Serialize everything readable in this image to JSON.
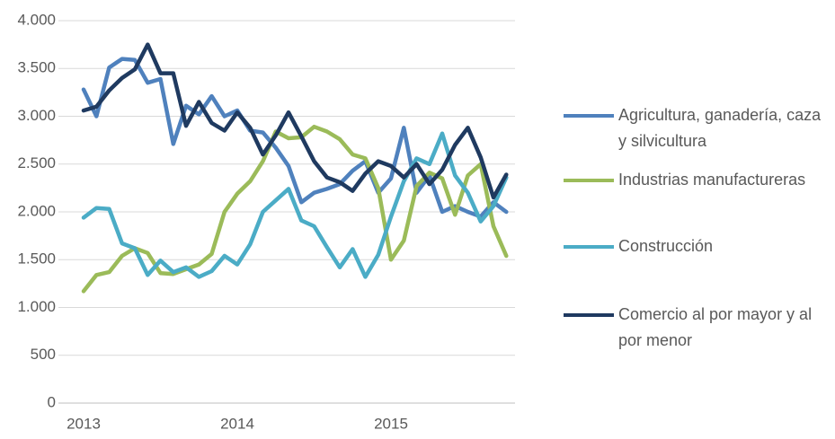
{
  "chart_data": {
    "type": "line",
    "categories": [
      "2013",
      null,
      null,
      null,
      null,
      null,
      null,
      null,
      null,
      null,
      null,
      null,
      "2014",
      null,
      null,
      null,
      null,
      null,
      null,
      null,
      null,
      null,
      null,
      null,
      "2015",
      null,
      null,
      null,
      null,
      null,
      null,
      null,
      null,
      null
    ],
    "series": [
      {
        "name": "Agricultura, ganadería, caza y silvicultura",
        "color": "#4f81bd",
        "values": [
          3280,
          3000,
          3510,
          3600,
          3590,
          3350,
          3390,
          2710,
          3110,
          3020,
          3210,
          3000,
          3060,
          2850,
          2830,
          2670,
          2480,
          2100,
          2200,
          2240,
          2290,
          2430,
          2530,
          2200,
          2350,
          2880,
          2200,
          2380,
          2000,
          2060,
          2000,
          1950,
          2100,
          2000
        ]
      },
      {
        "name": "Industrias manufactureras",
        "color": "#9bbb59",
        "values": [
          1170,
          1340,
          1370,
          1540,
          1620,
          1570,
          1360,
          1350,
          1400,
          1450,
          1560,
          2000,
          2190,
          2320,
          2530,
          2840,
          2770,
          2780,
          2890,
          2840,
          2760,
          2600,
          2560,
          2250,
          1500,
          1700,
          2270,
          2410,
          2350,
          1970,
          2380,
          2500,
          1850,
          1540
        ]
      },
      {
        "name": "Construcción",
        "color": "#4bacc6",
        "values": [
          1940,
          2040,
          2030,
          1670,
          1620,
          1340,
          1490,
          1370,
          1420,
          1320,
          1380,
          1540,
          1450,
          1660,
          2000,
          2120,
          2240,
          1910,
          1850,
          1630,
          1420,
          1610,
          1320,
          1550,
          1950,
          2320,
          2560,
          2500,
          2820,
          2380,
          2200,
          1900,
          2060,
          2360
        ]
      },
      {
        "name": "Comercio al por mayor y al por menor",
        "color": "#1f3a60",
        "values": [
          3060,
          3100,
          3270,
          3400,
          3490,
          3750,
          3450,
          3450,
          2900,
          3150,
          2930,
          2850,
          3040,
          2880,
          2600,
          2800,
          3040,
          2790,
          2530,
          2360,
          2310,
          2220,
          2400,
          2530,
          2480,
          2360,
          2500,
          2290,
          2440,
          2700,
          2880,
          2570,
          2150,
          2390
        ]
      }
    ],
    "ylim": [
      0,
      4000
    ],
    "yticks": [
      0,
      500,
      {
        "value": 1000,
        "label": "1.000"
      },
      {
        "value": 1500,
        "label": "1.500"
      },
      {
        "value": 2000,
        "label": "2.000"
      },
      {
        "value": 2500,
        "label": "2.500"
      },
      {
        "value": 3000,
        "label": "3.000"
      },
      {
        "value": 3500,
        "label": "3.500"
      },
      {
        "value": 4000,
        "label": "4.000"
      }
    ],
    "grid": true,
    "legend": "right"
  }
}
